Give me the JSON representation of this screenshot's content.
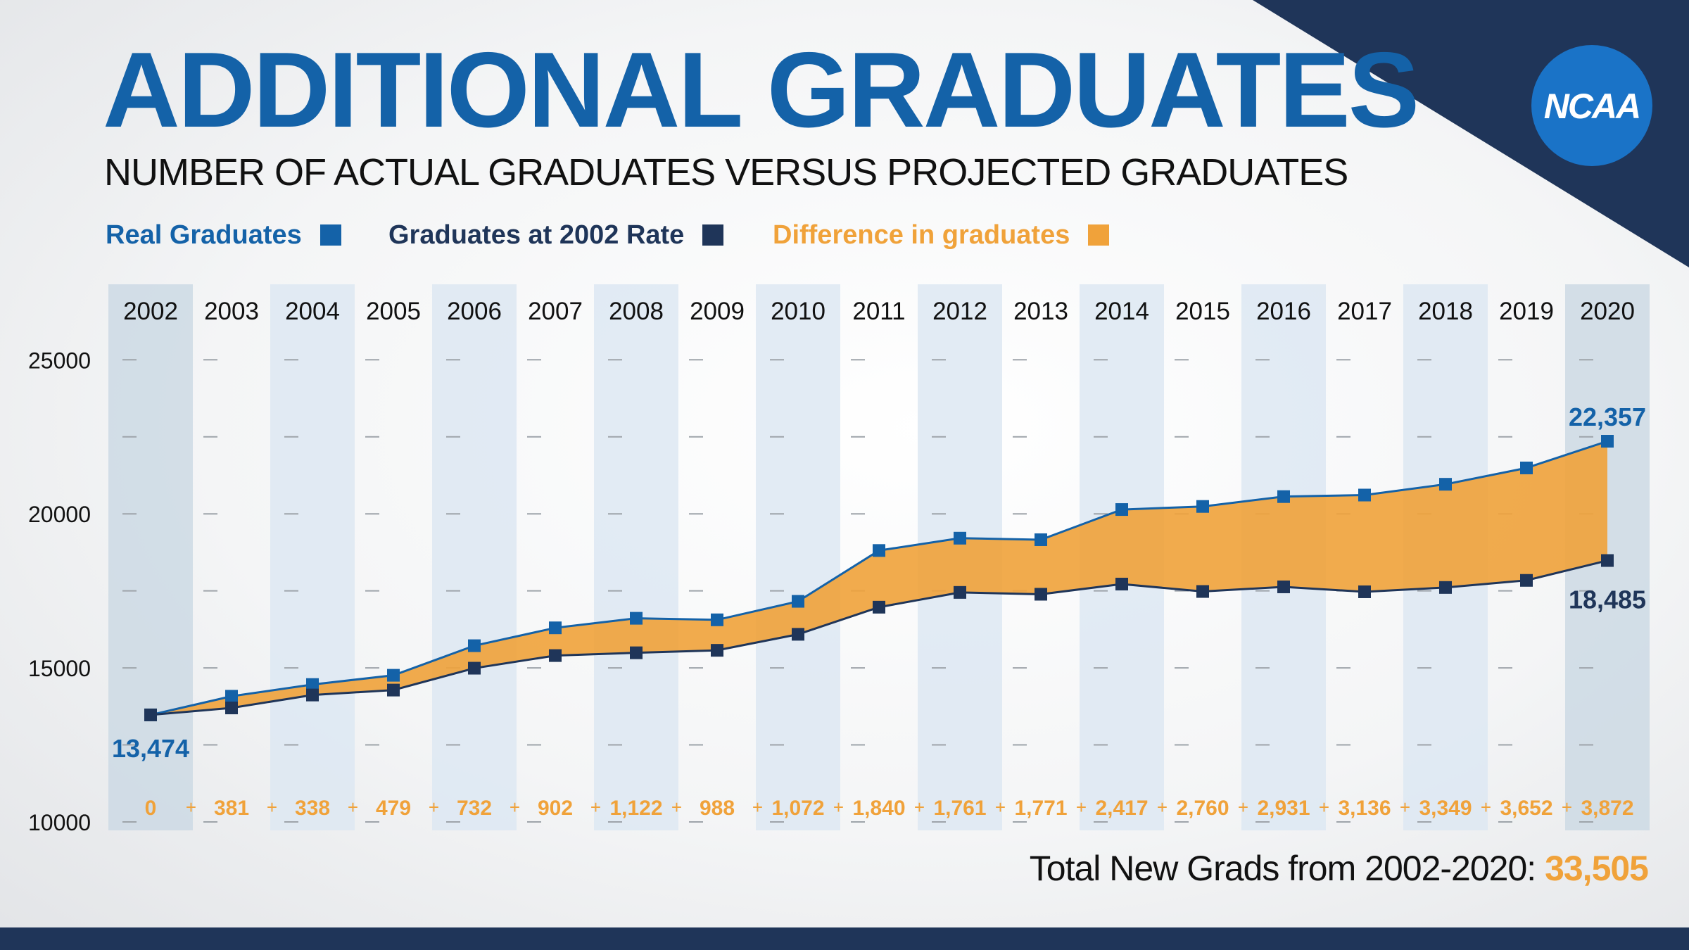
{
  "title": "ADDITIONAL GRADUATES",
  "subtitle": "NUMBER OF ACTUAL GRADUATES VERSUS PROJECTED GRADUATES",
  "logo_text": "NCAA",
  "legend": [
    {
      "label": "Real Graduates",
      "color": "#1462a8"
    },
    {
      "label": "Graduates at 2002 Rate",
      "color": "#1f3559"
    },
    {
      "label": "Difference in graduates",
      "color": "#f0a23a"
    }
  ],
  "total": {
    "label": "Total New Grads from 2002-2020:",
    "value": "33,505"
  },
  "chart_data": {
    "type": "line",
    "x": [
      "2002",
      "2003",
      "2004",
      "2005",
      "2006",
      "2007",
      "2008",
      "2009",
      "2010",
      "2011",
      "2012",
      "2013",
      "2014",
      "2015",
      "2016",
      "2017",
      "2018",
      "2019",
      "2020"
    ],
    "ylim": [
      10000,
      27000
    ],
    "yticks": [
      "25000",
      "20000",
      "15000",
      "10000"
    ],
    "grid": true,
    "legend_position": "top-left",
    "series": [
      {
        "name": "Real Graduates",
        "color": "#1462a8",
        "values": [
          13474,
          14080,
          14460,
          14760,
          15720,
          16300,
          16610,
          16560,
          17160,
          18810,
          19210,
          19160,
          20140,
          20240,
          20560,
          20610,
          20960,
          21490,
          22357
        ]
      },
      {
        "name": "Graduates at 2002 Rate",
        "color": "#1f3559",
        "values": [
          13474,
          13700,
          14120,
          14280,
          14990,
          15400,
          15490,
          15570,
          16090,
          16970,
          17450,
          17390,
          17720,
          17480,
          17630,
          17470,
          17610,
          17840,
          18485
        ]
      }
    ],
    "difference_label": "Difference in graduates",
    "difference_color": "#f0a23a",
    "differences": [
      "0",
      "381",
      "338",
      "479",
      "732",
      "902",
      "1,122",
      "988",
      "1,072",
      "1,840",
      "1,761",
      "1,771",
      "2,417",
      "2,760",
      "2,931",
      "3,136",
      "3,349",
      "3,652",
      "3,872"
    ],
    "annotations": [
      {
        "text": "13,474",
        "series": 0,
        "index": 0
      },
      {
        "text": "22,357",
        "series": 0,
        "index": 18
      },
      {
        "text": "18,485",
        "series": 1,
        "index": 18
      }
    ]
  }
}
